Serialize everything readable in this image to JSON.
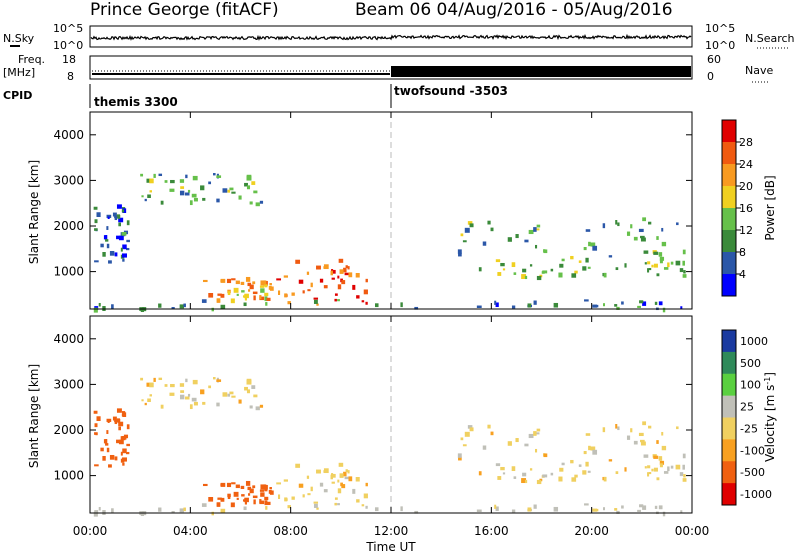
{
  "header": {
    "station": "Prince George (fitACF)",
    "beam_dates": "Beam 06 04/Aug/2016 - 05/Aug/2016"
  },
  "nsky_panel": {
    "left_label": "N.Sky",
    "left_ticks": [
      "10^5",
      "10^0"
    ],
    "right_ticks": [
      "10^5",
      "10^0"
    ],
    "right_label": "N.Search"
  },
  "freq_panel": {
    "left_label_1": "Freq.",
    "left_label_2": "[MHz]",
    "left_ticks": [
      "18",
      "8"
    ],
    "right_ticks": [
      "60",
      "0"
    ],
    "right_label": "Nave"
  },
  "cpid_panel": {
    "label": "CPID",
    "program_1": "themis 3300",
    "program_2": "twofsound -3503"
  },
  "power_panel": {
    "ylabel": "Slant Range [km]",
    "yticks": [
      "4000",
      "3000",
      "2000",
      "1000"
    ],
    "colorbar_label": "Power [dB]",
    "colorbar_ticks": [
      "28",
      "24",
      "20",
      "16",
      "12",
      "8",
      "4"
    ]
  },
  "velocity_panel": {
    "ylabel": "Slant Range [km]",
    "yticks": [
      "4000",
      "3000",
      "2000",
      "1000"
    ],
    "colorbar_ticks": [
      "1000",
      "500",
      "100",
      "25",
      "-25",
      "-100",
      "-500",
      "-1000"
    ]
  },
  "xaxis": {
    "ticks": [
      "00:00",
      "04:00",
      "08:00",
      "12:00",
      "16:00",
      "20:00",
      "00:00"
    ],
    "label": "Time UT"
  },
  "chart_data": {
    "type": "heatmap",
    "x_range_hours": [
      0,
      24
    ],
    "y_range_km": [
      180,
      4500
    ],
    "program_change_hour": 12,
    "power_colors": [
      "#0000ff",
      "#2b57a8",
      "#3a8a3a",
      "#66c04a",
      "#f0d020",
      "#f89a20",
      "#f05a10",
      "#e00000"
    ],
    "velocity_colors": [
      "#e00000",
      "#f06010",
      "#f8a020",
      "#f0d060",
      "#c0c0b8",
      "#5ad040",
      "#2f8a5a",
      "#1a3aa0"
    ],
    "echo_regions": [
      {
        "name": "early-high",
        "t": [
          2.0,
          6.8
        ],
        "r": [
          2500,
          3200
        ],
        "power_db": 12,
        "velocity": 0
      },
      {
        "name": "morning-mid",
        "t": [
          4.5,
          7.3
        ],
        "r": [
          400,
          900
        ],
        "power_db": 20,
        "velocity": -200
      },
      {
        "name": "main-blob",
        "t": [
          7.3,
          11.0
        ],
        "r": [
          300,
          1300
        ],
        "power_db": 24,
        "velocity": 0
      },
      {
        "name": "ground-scatter",
        "t": [
          0,
          24
        ],
        "r": [
          200,
          400
        ],
        "power_db": 10,
        "velocity": 50
      },
      {
        "name": "evening-band-1",
        "t": [
          14.5,
          23.8
        ],
        "r": [
          1300,
          2200
        ],
        "power_db": 12,
        "velocity": 0
      },
      {
        "name": "evening-band-2",
        "t": [
          15.5,
          23.8
        ],
        "r": [
          900,
          1300
        ],
        "power_db": 14,
        "velocity": 0
      },
      {
        "name": "night-west",
        "t": [
          0,
          1.5
        ],
        "r": [
          1200,
          2500
        ],
        "power_db": 8,
        "velocity": -300
      }
    ]
  }
}
